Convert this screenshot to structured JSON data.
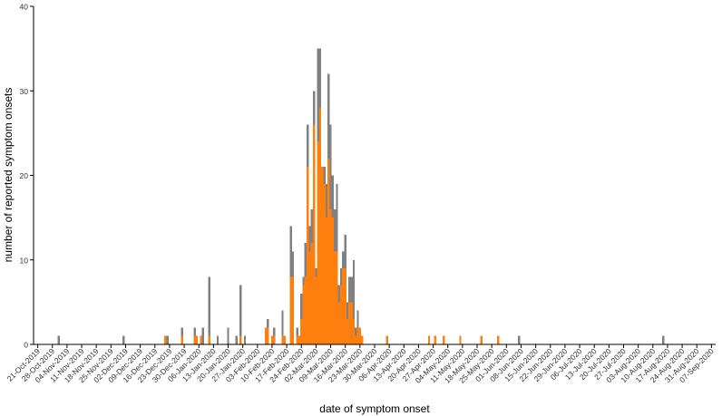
{
  "chart_data": {
    "type": "bar",
    "stacked": true,
    "xlabel": "date of symptom onset",
    "ylabel": "number of reported symptom onsets",
    "ylim": [
      0,
      40
    ],
    "yticks": [
      0,
      10,
      20,
      30,
      40
    ],
    "x_range": [
      "2019-10-19",
      "2020-09-09"
    ],
    "x_ticks": [
      "21-Oct-2019",
      "28-Oct-2019",
      "04-Nov-2019",
      "11-Nov-2019",
      "18-Nov-2019",
      "25-Nov-2019",
      "02-Dec-2019",
      "09-Dec-2019",
      "16-Dec-2019",
      "23-Dec-2019",
      "30-Dec-2019",
      "06-Jan-2020",
      "13-Jan-2020",
      "20-Jan-2020",
      "27-Jan-2020",
      "03-Feb-2020",
      "10-Feb-2020",
      "17-Feb-2020",
      "24-Feb-2020",
      "02-Mar-2020",
      "09-Mar-2020",
      "16-Mar-2020",
      "23-Mar-2020",
      "30-Mar-2020",
      "06-Apr-2020",
      "13-Apr-2020",
      "20-Apr-2020",
      "27-Apr-2020",
      "04-May-2020",
      "11-May-2020",
      "18-May-2020",
      "25-May-2020",
      "01-Jun-2020",
      "08-Jun-2020",
      "15-Jun-2020",
      "22-Jun-2020",
      "29-Jun-2020",
      "06-Jul-2020",
      "13-Jul-2020",
      "20-Jul-2020",
      "27-Jul-2020",
      "03-Aug-2020",
      "10-Aug-2020",
      "17-Aug-2020",
      "24-Aug-2020",
      "31-Aug-2020",
      "07-Sep-2020"
    ],
    "series_colors": [
      "#ff7f0e",
      "#808080"
    ],
    "bars": [
      {
        "date": "2019-10-31",
        "values": [
          0,
          1
        ]
      },
      {
        "date": "2019-12-01",
        "values": [
          0,
          1
        ]
      },
      {
        "date": "2019-12-21",
        "values": [
          1,
          0
        ]
      },
      {
        "date": "2019-12-22",
        "values": [
          0,
          1
        ]
      },
      {
        "date": "2019-12-29",
        "values": [
          1,
          1
        ]
      },
      {
        "date": "2020-01-04",
        "values": [
          1,
          1
        ]
      },
      {
        "date": "2020-01-05",
        "values": [
          1,
          0
        ]
      },
      {
        "date": "2020-01-07",
        "values": [
          1,
          0
        ]
      },
      {
        "date": "2020-01-08",
        "values": [
          0,
          2
        ]
      },
      {
        "date": "2020-01-11",
        "values": [
          1,
          7
        ]
      },
      {
        "date": "2020-01-15",
        "values": [
          0,
          1
        ]
      },
      {
        "date": "2020-01-20",
        "values": [
          0,
          2
        ]
      },
      {
        "date": "2020-01-24",
        "values": [
          0,
          1
        ]
      },
      {
        "date": "2020-01-26",
        "values": [
          1,
          6
        ]
      },
      {
        "date": "2020-01-28",
        "values": [
          0,
          1
        ]
      },
      {
        "date": "2020-02-07",
        "values": [
          2,
          0
        ]
      },
      {
        "date": "2020-02-08",
        "values": [
          2,
          1
        ]
      },
      {
        "date": "2020-02-10",
        "values": [
          1,
          0
        ]
      },
      {
        "date": "2020-02-11",
        "values": [
          1,
          1
        ]
      },
      {
        "date": "2020-02-15",
        "values": [
          1,
          3
        ]
      },
      {
        "date": "2020-02-16",
        "values": [
          1,
          0
        ]
      },
      {
        "date": "2020-02-19",
        "values": [
          8,
          6
        ]
      },
      {
        "date": "2020-02-20",
        "values": [
          8,
          3
        ]
      },
      {
        "date": "2020-02-22",
        "values": [
          1,
          1
        ]
      },
      {
        "date": "2020-02-23",
        "values": [
          1,
          0
        ]
      },
      {
        "date": "2020-02-24",
        "values": [
          3,
          3
        ]
      },
      {
        "date": "2020-02-25",
        "values": [
          7,
          1
        ]
      },
      {
        "date": "2020-02-26",
        "values": [
          8,
          4
        ]
      },
      {
        "date": "2020-02-27",
        "values": [
          21,
          5
        ]
      },
      {
        "date": "2020-02-28",
        "values": [
          11,
          3
        ]
      },
      {
        "date": "2020-02-29",
        "values": [
          12,
          4
        ]
      },
      {
        "date": "2020-03-01",
        "values": [
          26,
          4
        ]
      },
      {
        "date": "2020-03-02",
        "values": [
          8,
          1
        ]
      },
      {
        "date": "2020-03-03",
        "values": [
          24,
          11
        ]
      },
      {
        "date": "2020-03-04",
        "values": [
          28,
          7
        ]
      },
      {
        "date": "2020-03-05",
        "values": [
          21,
          0
        ]
      },
      {
        "date": "2020-03-06",
        "values": [
          19,
          2
        ]
      },
      {
        "date": "2020-03-07",
        "values": [
          15,
          4
        ]
      },
      {
        "date": "2020-03-08",
        "values": [
          22,
          10
        ]
      },
      {
        "date": "2020-03-09",
        "values": [
          16,
          10
        ]
      },
      {
        "date": "2020-03-10",
        "values": [
          15,
          5
        ]
      },
      {
        "date": "2020-03-11",
        "values": [
          11,
          5
        ]
      },
      {
        "date": "2020-03-12",
        "values": [
          11,
          8
        ]
      },
      {
        "date": "2020-03-13",
        "values": [
          5,
          2
        ]
      },
      {
        "date": "2020-03-14",
        "values": [
          7,
          2
        ]
      },
      {
        "date": "2020-03-15",
        "values": [
          9,
          2
        ]
      },
      {
        "date": "2020-03-16",
        "values": [
          9,
          4
        ]
      },
      {
        "date": "2020-03-17",
        "values": [
          3,
          2
        ]
      },
      {
        "date": "2020-03-18",
        "values": [
          5,
          3
        ]
      },
      {
        "date": "2020-03-19",
        "values": [
          5,
          3
        ]
      },
      {
        "date": "2020-03-20",
        "values": [
          3,
          7
        ]
      },
      {
        "date": "2020-03-21",
        "values": [
          1,
          1
        ]
      },
      {
        "date": "2020-03-22",
        "values": [
          2,
          2
        ]
      },
      {
        "date": "2020-03-23",
        "values": [
          2,
          0
        ]
      },
      {
        "date": "2020-03-24",
        "values": [
          1,
          0
        ]
      },
      {
        "date": "2020-04-05",
        "values": [
          1,
          0
        ]
      },
      {
        "date": "2020-04-25",
        "values": [
          1,
          0
        ]
      },
      {
        "date": "2020-04-28",
        "values": [
          1,
          0
        ]
      },
      {
        "date": "2020-05-02",
        "values": [
          1,
          0
        ]
      },
      {
        "date": "2020-05-10",
        "values": [
          1,
          0
        ]
      },
      {
        "date": "2020-05-20",
        "values": [
          1,
          0
        ]
      },
      {
        "date": "2020-05-28",
        "values": [
          1,
          0
        ]
      },
      {
        "date": "2020-06-07",
        "values": [
          0,
          1
        ]
      },
      {
        "date": "2020-08-15",
        "values": [
          0,
          1
        ]
      }
    ]
  }
}
